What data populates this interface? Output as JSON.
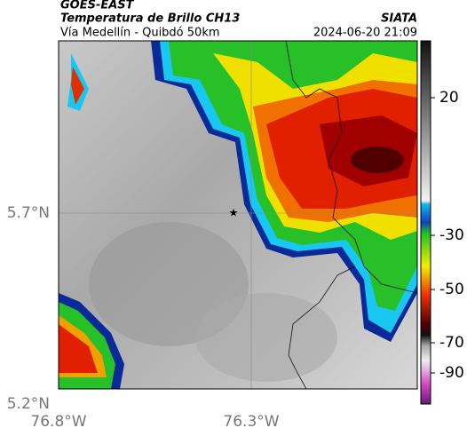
{
  "header": {
    "satellite": "GOES-EAST",
    "product": "Temperatura de Brillo CH13",
    "region": "Vía Medellín - Quibdó 50km",
    "source": "SIATA",
    "datetime": "2024-06-20 21:09"
  },
  "axes": {
    "lat_labels": [
      "5.7°N",
      "5.2°N"
    ],
    "lon_labels": [
      "76.8°W",
      "76.3°W"
    ]
  },
  "colorbar": {
    "ticks": [
      20,
      -30,
      -50,
      -70,
      -90
    ]
  }
}
